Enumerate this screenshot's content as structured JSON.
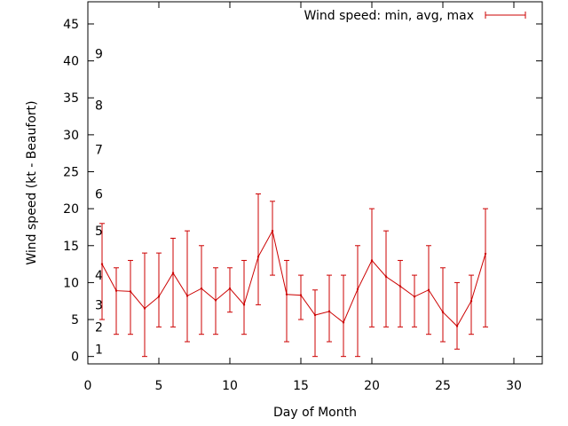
{
  "chart_data": {
    "type": "line",
    "xlabel": "Day of Month",
    "ylabel": "Wind speed (kt - Beaufort)",
    "xlim": [
      0,
      32
    ],
    "ylim": [
      -1,
      48
    ],
    "xticks": [
      0,
      5,
      10,
      15,
      20,
      25,
      30
    ],
    "yticks": [
      0,
      5,
      10,
      15,
      20,
      25,
      30,
      35,
      40,
      45
    ],
    "grid": false,
    "legend_position": "top-right",
    "beaufort_labels": [
      {
        "label": "1",
        "y": 1
      },
      {
        "label": "2",
        "y": 4
      },
      {
        "label": "3",
        "y": 7
      },
      {
        "label": "4",
        "y": 11
      },
      {
        "label": "5",
        "y": 17
      },
      {
        "label": "6",
        "y": 22
      },
      {
        "label": "7",
        "y": 28
      },
      {
        "label": "8",
        "y": 34
      },
      {
        "label": "9",
        "y": 41
      }
    ],
    "series": [
      {
        "name": "Wind speed: min, avg, max",
        "color": "#cc0000",
        "x": [
          1,
          2,
          3,
          4,
          5,
          6,
          7,
          8,
          9,
          10,
          11,
          12,
          13,
          14,
          15,
          16,
          17,
          18,
          19,
          20,
          21,
          22,
          23,
          24,
          25,
          26,
          27,
          28
        ],
        "avg": [
          12.5,
          8.9,
          8.8,
          6.5,
          8.1,
          11.3,
          8.2,
          9.2,
          7.6,
          9.2,
          7.0,
          13.5,
          17.0,
          8.4,
          8.3,
          5.6,
          6.1,
          4.6,
          9.1,
          13.0,
          10.8,
          9.5,
          8.1,
          9.0,
          6.0,
          4.1,
          7.5,
          13.9
        ],
        "min": [
          5,
          3,
          3,
          0,
          4,
          4,
          2,
          3,
          3,
          6,
          3,
          7,
          11,
          2,
          5,
          0,
          2,
          0,
          0,
          4,
          4,
          4,
          4,
          3,
          2,
          1,
          3,
          4
        ],
        "max": [
          18,
          12,
          13,
          14,
          14,
          16,
          17,
          15,
          12,
          12,
          13,
          22,
          21,
          13,
          11,
          9,
          11,
          11,
          15,
          20,
          17,
          13,
          11,
          15,
          12,
          10,
          11,
          20
        ]
      }
    ]
  }
}
